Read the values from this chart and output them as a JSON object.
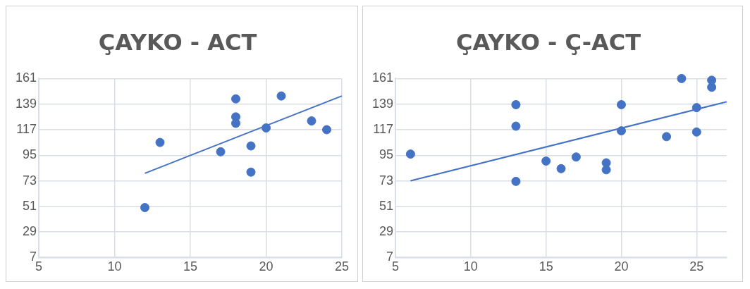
{
  "chart_data": [
    {
      "type": "scatter",
      "title": "ÇAYKO - ACT",
      "xlim": [
        5,
        25
      ],
      "xticks": [
        5,
        10,
        15,
        20,
        25
      ],
      "ylim": [
        7,
        161
      ],
      "yticks": [
        7,
        29,
        51,
        73,
        95,
        117,
        139,
        161
      ],
      "grid": true,
      "legend": false,
      "marker": "circle",
      "series": [
        {
          "color": "#4472c4",
          "x": [
            13,
            12,
            17,
            18,
            18,
            18,
            19,
            19,
            20,
            21,
            23,
            24
          ],
          "values": [
            106,
            50,
            98,
            143.5,
            128,
            122.5,
            103,
            80.5,
            118.5,
            146,
            124.5,
            117
          ]
        },
        {
          "type": "line",
          "color": "#4472c4",
          "marker": "none",
          "line_style": "solid",
          "x": [
            12,
            25
          ],
          "values": [
            79.5,
            146
          ]
        }
      ]
    },
    {
      "type": "scatter",
      "title": "ÇAYKO - Ç-ACT",
      "xlim": [
        5,
        27
      ],
      "xticks": [
        5,
        10,
        15,
        20,
        25
      ],
      "ylim": [
        7,
        161
      ],
      "yticks": [
        7,
        29,
        51,
        73,
        95,
        117,
        139,
        161
      ],
      "grid": true,
      "legend": false,
      "marker": "circle",
      "series": [
        {
          "color": "#4472c4",
          "x": [
            6,
            13,
            13,
            13,
            15,
            16,
            17,
            19,
            19,
            20,
            20,
            23,
            24,
            25,
            25,
            26,
            26
          ],
          "values": [
            96,
            138.5,
            120,
            72.5,
            90,
            83.5,
            93.5,
            88.5,
            82.5,
            138.5,
            116,
            111,
            161,
            136,
            115,
            159.5,
            153.5
          ]
        },
        {
          "type": "line",
          "color": "#4472c4",
          "marker": "none",
          "line_style": "solid",
          "x": [
            6,
            27
          ],
          "values": [
            73,
            141
          ]
        }
      ]
    }
  ]
}
